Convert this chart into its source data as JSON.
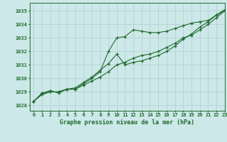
{
  "title": "Graphe pression niveau de la mer (hPa)",
  "bg_color": "#cde8e8",
  "grid_color": "#b0cccc",
  "line_color": "#1e6b2e",
  "xlim": [
    -0.5,
    23
  ],
  "ylim": [
    1027.6,
    1035.6
  ],
  "yticks": [
    1028,
    1029,
    1030,
    1031,
    1032,
    1033,
    1034,
    1035
  ],
  "xticks": [
    0,
    1,
    2,
    3,
    4,
    5,
    6,
    7,
    8,
    9,
    10,
    11,
    12,
    13,
    14,
    15,
    16,
    17,
    18,
    19,
    20,
    21,
    22,
    23
  ],
  "line1": [
    1028.3,
    1028.8,
    1029.0,
    1029.0,
    1029.2,
    1029.2,
    1029.5,
    1029.8,
    1030.1,
    1030.5,
    1031.0,
    1031.2,
    1031.5,
    1031.7,
    1031.8,
    1032.0,
    1032.3,
    1032.6,
    1033.0,
    1033.2,
    1033.6,
    1034.0,
    1034.5,
    1035.0
  ],
  "line2": [
    1028.3,
    1028.9,
    1029.1,
    1028.9,
    1029.2,
    1029.2,
    1029.6,
    1030.0,
    1030.5,
    1032.0,
    1033.0,
    1033.1,
    1033.6,
    1033.5,
    1033.4,
    1033.4,
    1033.5,
    1033.7,
    1033.9,
    1034.1,
    1034.2,
    1034.3,
    1034.7,
    1035.0
  ],
  "line3": [
    1028.3,
    1028.9,
    1029.0,
    1029.0,
    1029.2,
    1029.3,
    1029.7,
    1030.1,
    1030.6,
    1031.1,
    1031.8,
    1031.0,
    1031.2,
    1031.3,
    1031.5,
    1031.7,
    1032.0,
    1032.4,
    1032.9,
    1033.3,
    1033.8,
    1034.2,
    1034.7,
    1035.1
  ]
}
